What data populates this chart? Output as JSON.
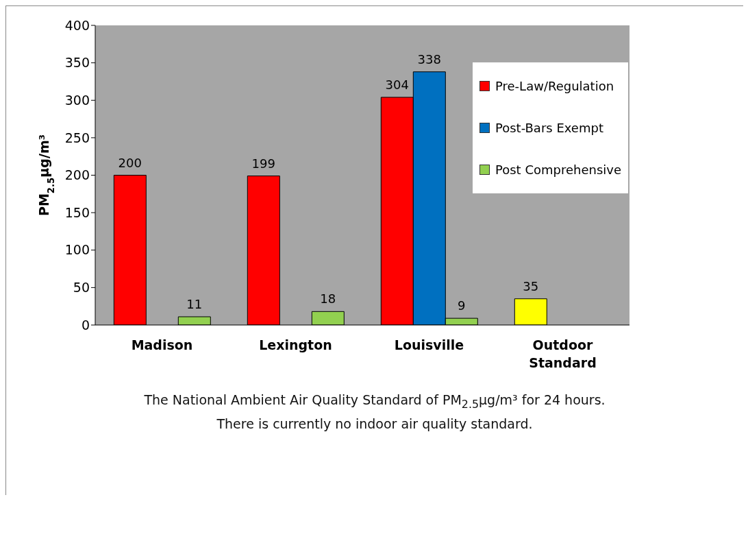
{
  "chart_data": {
    "type": "bar",
    "categories": [
      "Madison",
      "Lexington",
      "Louisville",
      "Outdoor Standard"
    ],
    "series": [
      {
        "name": "Pre-Law/Regulation",
        "color": "#ff0000",
        "colors": [
          "#ff0000",
          "#ff0000",
          "#ff0000",
          "#ffff00"
        ],
        "values": [
          200,
          199,
          304,
          35
        ]
      },
      {
        "name": "Post-Bars Exempt",
        "color": "#0070c0",
        "values": [
          null,
          null,
          338,
          null
        ]
      },
      {
        "name": "Post Comprehensive",
        "color": "#92d050",
        "values": [
          11,
          18,
          9,
          null
        ]
      }
    ],
    "ylabel": "PM$_{2.5}$µg/m³",
    "ylim": [
      0,
      400
    ],
    "yticks": [
      0,
      50,
      100,
      150,
      200,
      250,
      300,
      350,
      400
    ],
    "data_labels": true,
    "legend": "top right",
    "annotations": [
      "The National Ambient Air Quality Standard of PM$_{2.5}$µg/m³ for  24 hours.",
      "There is currently no indoor air quality standard."
    ]
  }
}
